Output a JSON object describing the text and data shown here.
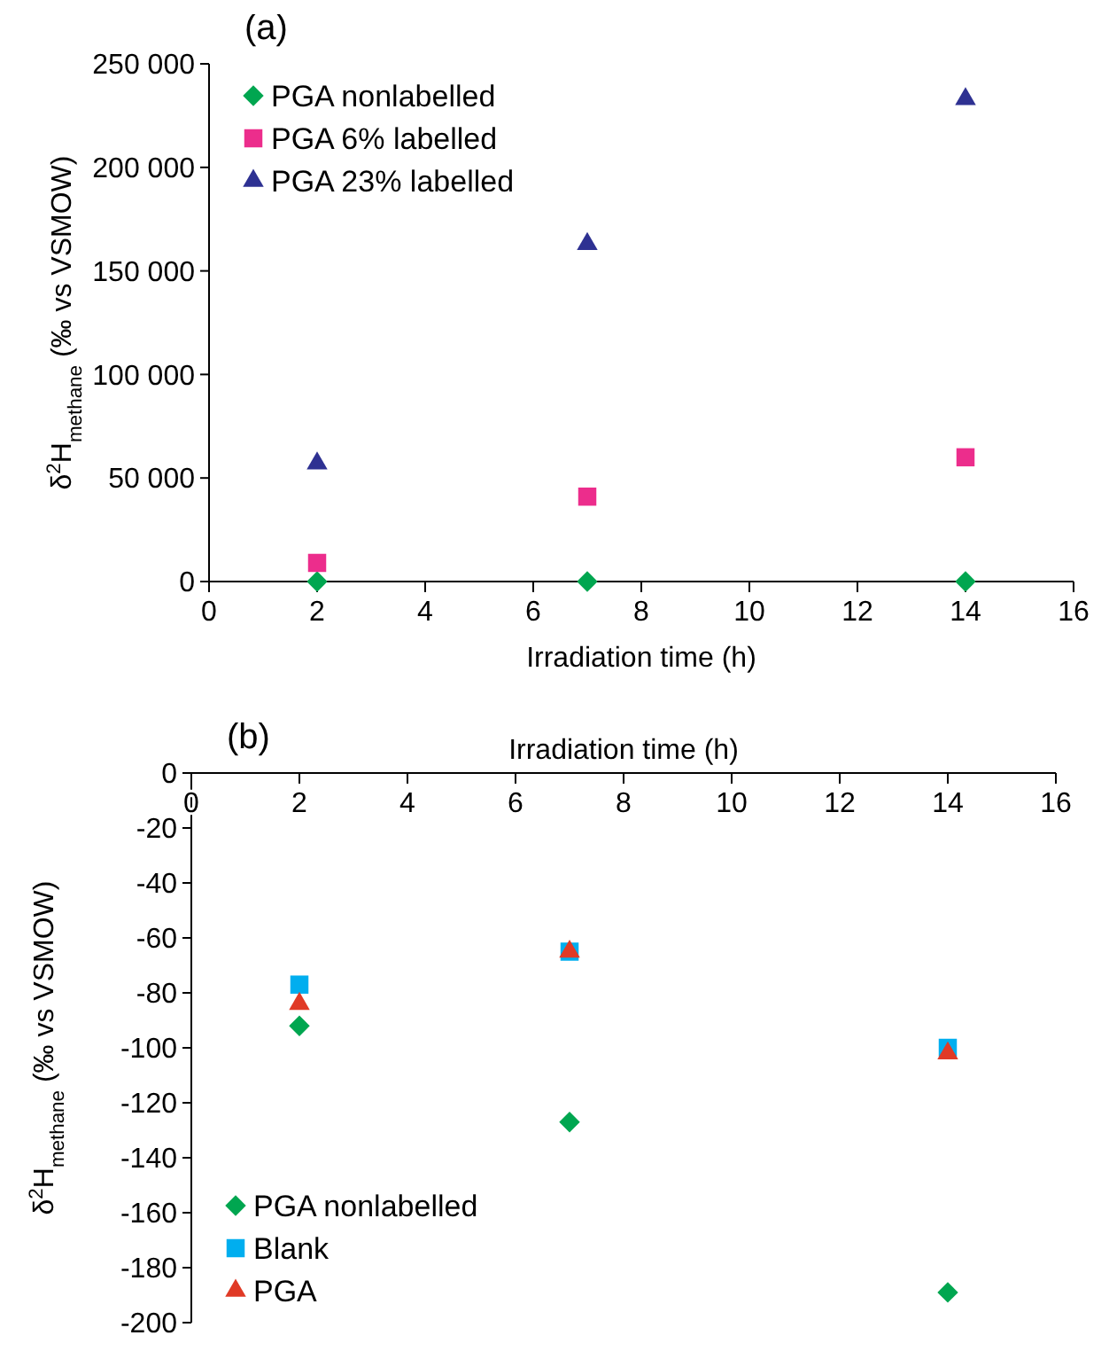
{
  "chart_data": [
    {
      "type": "scatter",
      "title": "(a)",
      "xlabel": "Irradiation time (h)",
      "ylabel": "δ$^{2}$H$_{methane}$ (‰ vs VSMOW)",
      "x": [
        2,
        7,
        14
      ],
      "xlim": [
        0,
        16
      ],
      "xticks": [
        0,
        2,
        4,
        6,
        8,
        10,
        12,
        14,
        16
      ],
      "ylim": [
        0,
        250000
      ],
      "yticks": [
        0,
        {
          "value": 50000,
          "label": "50 000"
        },
        {
          "value": 100000,
          "label": "100 000"
        },
        {
          "value": 150000,
          "label": "150 000"
        },
        {
          "value": 200000,
          "label": "200 000"
        },
        {
          "value": 250000,
          "label": "250 000"
        }
      ],
      "legend": "top left",
      "grid": false,
      "series": [
        {
          "name": "PGA nonlabelled",
          "color": "#00a650",
          "marker": "diamond",
          "values": [
            0,
            0,
            0
          ]
        },
        {
          "name": "PGA 6% labelled",
          "color": "#ec2d8c",
          "marker": "square",
          "values": [
            9000,
            41000,
            60000
          ]
        },
        {
          "name": "PGA 23% labelled",
          "color": "#2e3192",
          "marker": "triangle",
          "values": [
            57000,
            163000,
            233000
          ]
        }
      ]
    },
    {
      "type": "scatter",
      "title": "(b)",
      "xlabel": "Irradiation time (h)",
      "ylabel": "δ$^{2}$H$_{methane}$ (‰ vs VSMOW)",
      "x": [
        2,
        7,
        14
      ],
      "xlim": [
        0,
        16
      ],
      "xticks": [
        0,
        2,
        4,
        6,
        8,
        10,
        12,
        14,
        16
      ],
      "ylim": [
        -200,
        0
      ],
      "yticks": [
        -200,
        -180,
        -160,
        -140,
        -120,
        -100,
        -80,
        -60,
        -40,
        -20,
        0
      ],
      "legend": "bottom left",
      "grid": false,
      "series": [
        {
          "name": "PGA nonlabelled",
          "color": "#00a650",
          "marker": "diamond",
          "values": [
            -92,
            -127,
            -189
          ]
        },
        {
          "name": "Blank",
          "color": "#00aeef",
          "marker": "square",
          "values": [
            -77,
            -65,
            -100
          ]
        },
        {
          "name": "PGA",
          "color": "#e03a26",
          "marker": "triangle",
          "values": [
            -84,
            -65,
            -102
          ]
        }
      ]
    }
  ]
}
